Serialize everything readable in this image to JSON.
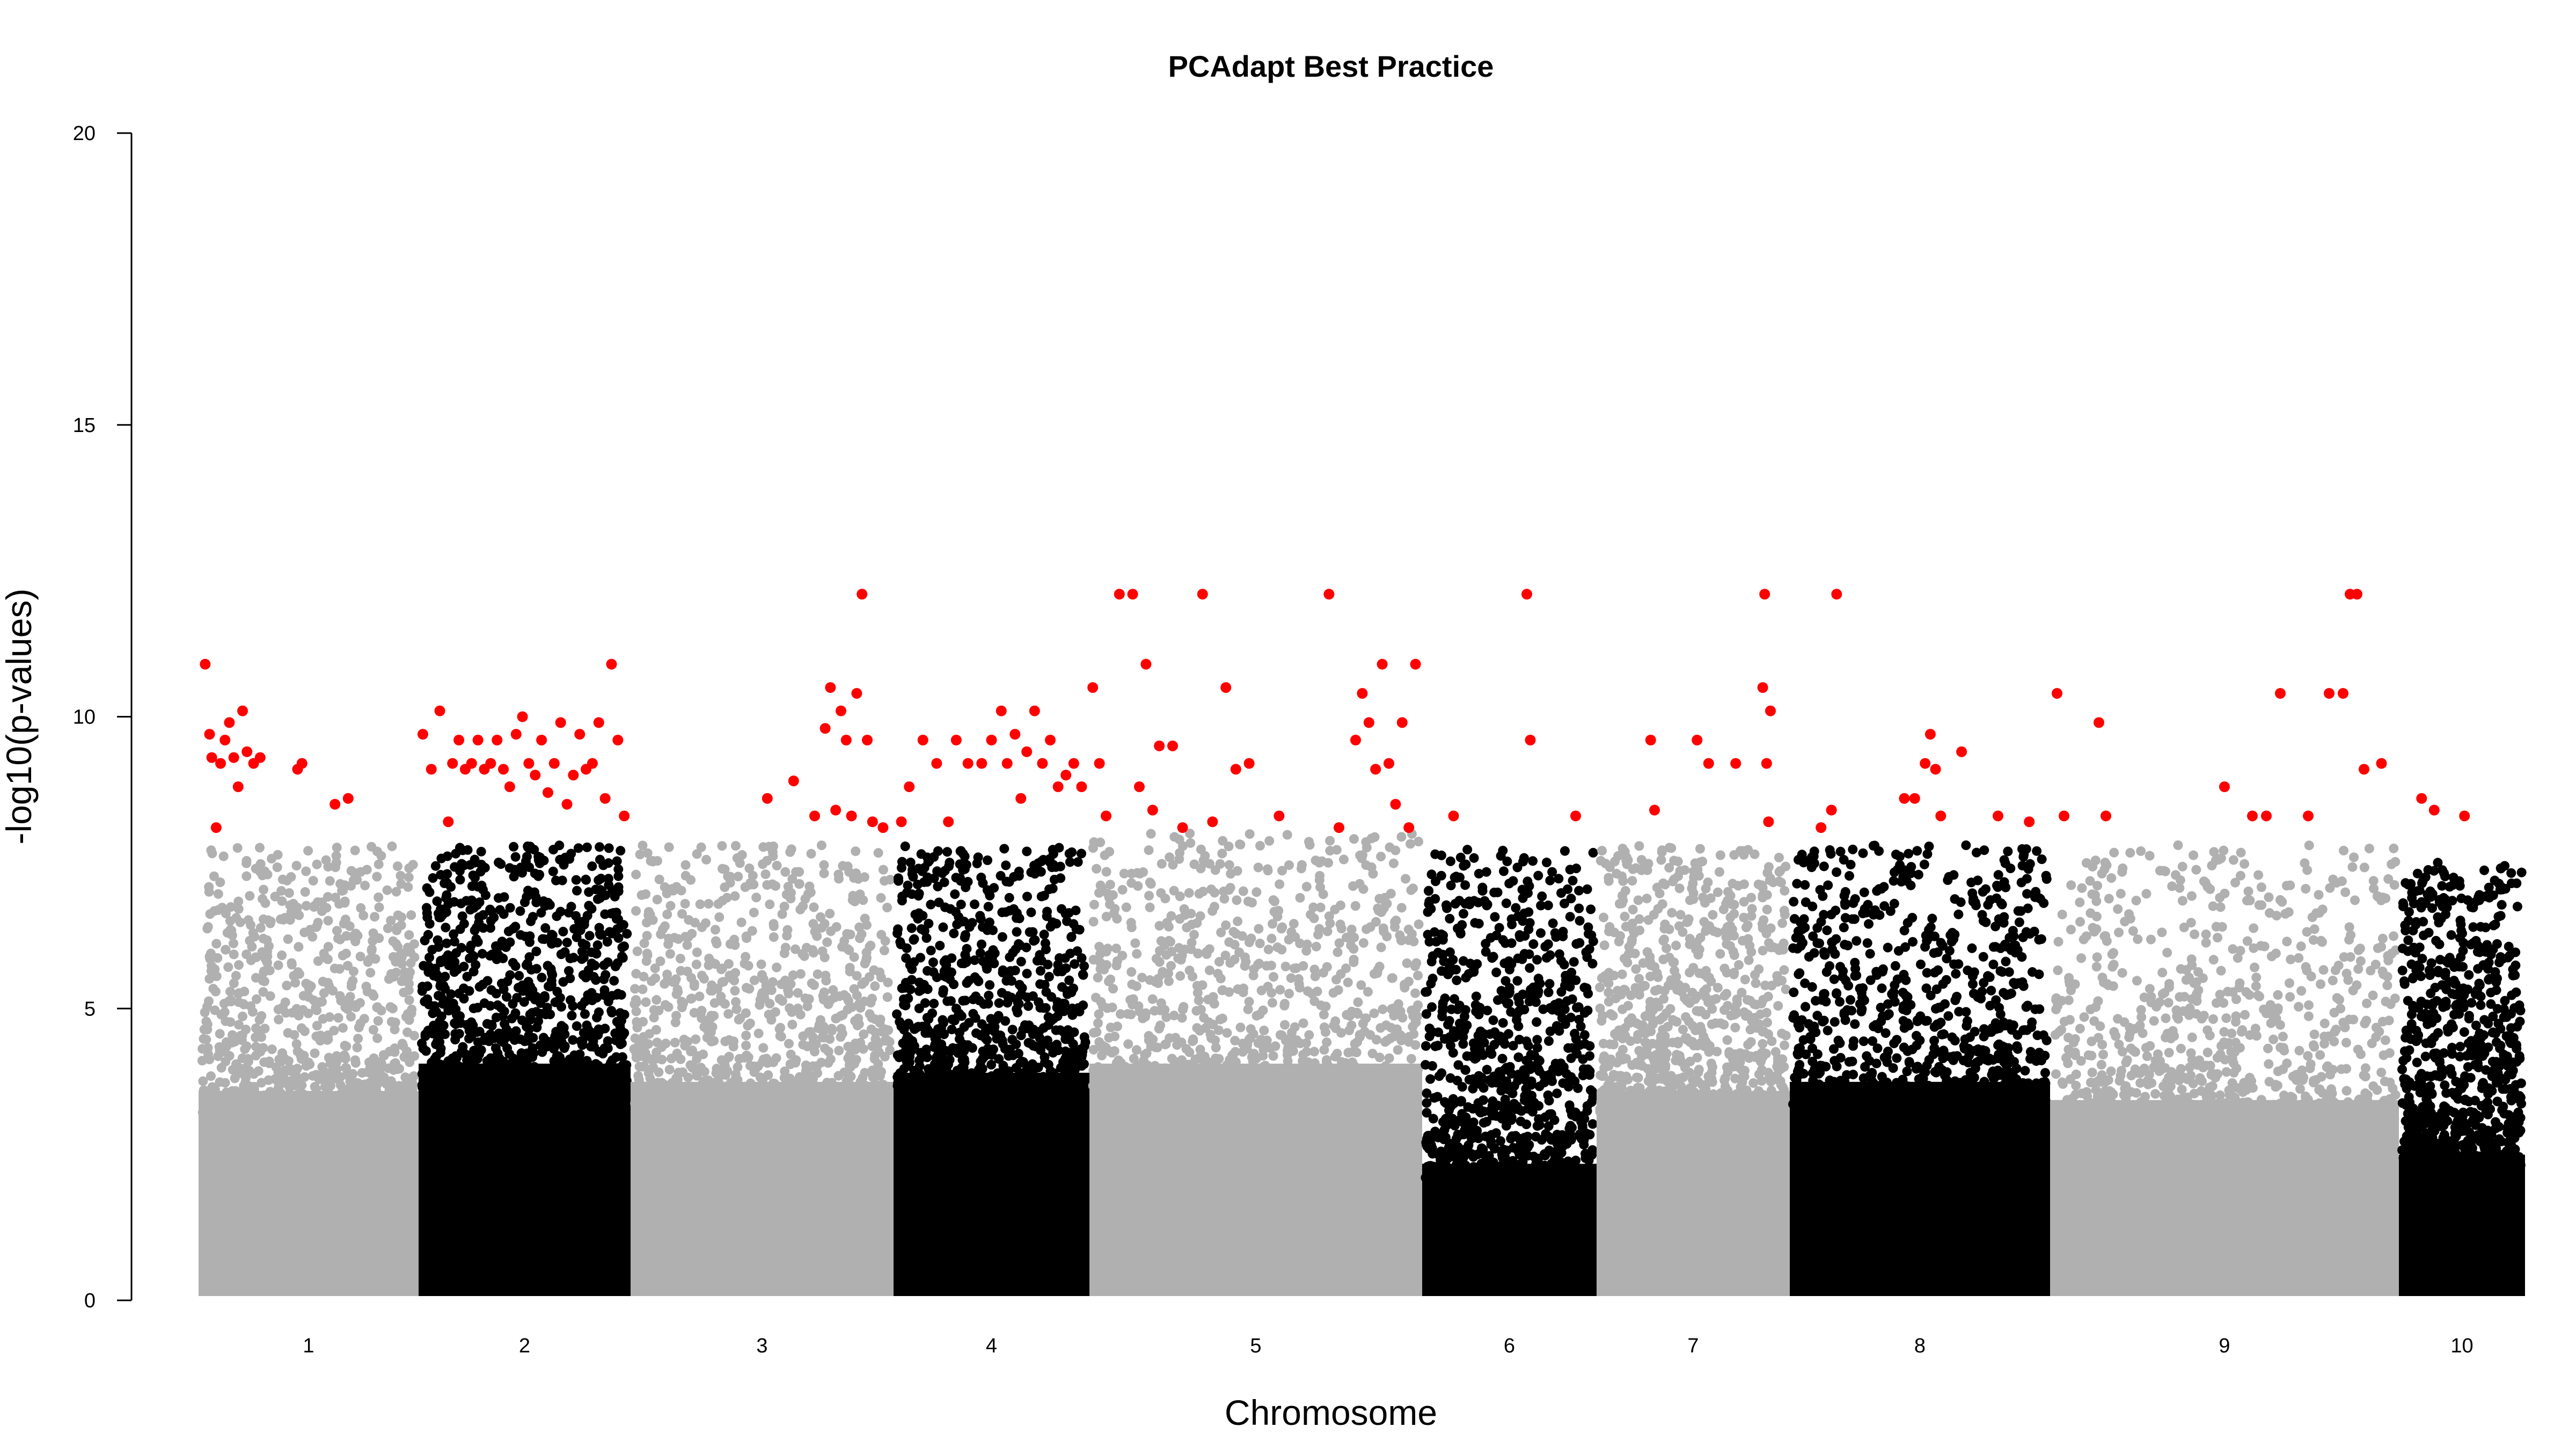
{
  "chart_data": {
    "type": "scatter",
    "title": "PCAdapt Best Practice",
    "xlabel": "Chromosome",
    "ylabel": "-log10(p-values)",
    "ylim": [
      0,
      20
    ],
    "yticks": [
      0,
      5,
      10,
      15,
      20
    ],
    "grid": false,
    "legend": "none",
    "colors": {
      "odd": "#b0b0b0",
      "even": "#000000",
      "outlier": "#ff0000"
    },
    "chromosomes": [
      {
        "label": "1",
        "color": "#b0b0b0",
        "max_y": 7.8,
        "dense_top": 4.6,
        "outliers": [
          [
            0.03,
            10.9
          ],
          [
            0.05,
            9.7
          ],
          [
            0.06,
            9.3
          ],
          [
            0.08,
            8.1
          ],
          [
            0.1,
            9.2
          ],
          [
            0.12,
            9.6
          ],
          [
            0.14,
            9.9
          ],
          [
            0.16,
            9.3
          ],
          [
            0.18,
            8.8
          ],
          [
            0.2,
            10.1
          ],
          [
            0.22,
            9.4
          ],
          [
            0.25,
            9.2
          ],
          [
            0.28,
            9.3
          ],
          [
            0.45,
            9.1
          ],
          [
            0.47,
            9.2
          ],
          [
            0.62,
            8.5
          ],
          [
            0.68,
            8.6
          ]
        ]
      },
      {
        "label": "2",
        "color": "#000000",
        "max_y": 7.8,
        "dense_top": 5.2,
        "outliers": [
          [
            0.02,
            9.7
          ],
          [
            0.06,
            9.1
          ],
          [
            0.1,
            10.1
          ],
          [
            0.14,
            8.2
          ],
          [
            0.16,
            9.2
          ],
          [
            0.19,
            9.6
          ],
          [
            0.22,
            9.1
          ],
          [
            0.25,
            9.2
          ],
          [
            0.28,
            9.6
          ],
          [
            0.31,
            9.1
          ],
          [
            0.34,
            9.2
          ],
          [
            0.37,
            9.6
          ],
          [
            0.4,
            9.1
          ],
          [
            0.43,
            8.8
          ],
          [
            0.46,
            9.7
          ],
          [
            0.49,
            10.0
          ],
          [
            0.52,
            9.2
          ],
          [
            0.55,
            9.0
          ],
          [
            0.58,
            9.6
          ],
          [
            0.61,
            8.7
          ],
          [
            0.64,
            9.2
          ],
          [
            0.67,
            9.9
          ],
          [
            0.7,
            8.5
          ],
          [
            0.73,
            9.0
          ],
          [
            0.76,
            9.7
          ],
          [
            0.79,
            9.1
          ],
          [
            0.82,
            9.2
          ],
          [
            0.85,
            9.9
          ],
          [
            0.88,
            8.6
          ],
          [
            0.91,
            10.9
          ],
          [
            0.94,
            9.6
          ],
          [
            0.97,
            8.3
          ]
        ]
      },
      {
        "label": "3",
        "color": "#b0b0b0",
        "max_y": 7.8,
        "dense_top": 4.8,
        "outliers": [
          [
            0.52,
            8.6
          ],
          [
            0.62,
            8.9
          ],
          [
            0.7,
            8.3
          ],
          [
            0.74,
            9.8
          ],
          [
            0.76,
            10.5
          ],
          [
            0.78,
            8.4
          ],
          [
            0.8,
            10.1
          ],
          [
            0.82,
            9.6
          ],
          [
            0.84,
            8.3
          ],
          [
            0.86,
            10.4
          ],
          [
            0.88,
            12.1
          ],
          [
            0.9,
            9.6
          ],
          [
            0.92,
            8.2
          ],
          [
            0.96,
            8.1
          ]
        ]
      },
      {
        "label": "4",
        "color": "#000000",
        "max_y": 7.8,
        "dense_top": 5.0,
        "outliers": [
          [
            0.04,
            8.2
          ],
          [
            0.08,
            8.8
          ],
          [
            0.15,
            9.6
          ],
          [
            0.22,
            9.2
          ],
          [
            0.28,
            8.2
          ],
          [
            0.32,
            9.6
          ],
          [
            0.38,
            9.2
          ],
          [
            0.45,
            9.2
          ],
          [
            0.5,
            9.6
          ],
          [
            0.55,
            10.1
          ],
          [
            0.58,
            9.2
          ],
          [
            0.62,
            9.7
          ],
          [
            0.65,
            8.6
          ],
          [
            0.68,
            9.4
          ],
          [
            0.72,
            10.1
          ],
          [
            0.76,
            9.2
          ],
          [
            0.8,
            9.6
          ],
          [
            0.84,
            8.8
          ],
          [
            0.88,
            9.0
          ],
          [
            0.92,
            9.2
          ],
          [
            0.96,
            8.8
          ]
        ]
      },
      {
        "label": "5",
        "color": "#b0b0b0",
        "max_y": 8.0,
        "dense_top": 5.2,
        "outliers": [
          [
            0.01,
            10.5
          ],
          [
            0.03,
            9.2
          ],
          [
            0.05,
            8.3
          ],
          [
            0.09,
            12.1
          ],
          [
            0.13,
            12.1
          ],
          [
            0.15,
            8.8
          ],
          [
            0.17,
            10.9
          ],
          [
            0.19,
            8.4
          ],
          [
            0.21,
            9.5
          ],
          [
            0.25,
            9.5
          ],
          [
            0.28,
            8.1
          ],
          [
            0.34,
            12.1
          ],
          [
            0.37,
            8.2
          ],
          [
            0.41,
            10.5
          ],
          [
            0.44,
            9.1
          ],
          [
            0.48,
            9.2
          ],
          [
            0.57,
            8.3
          ],
          [
            0.72,
            12.1
          ],
          [
            0.75,
            8.1
          ],
          [
            0.8,
            9.6
          ],
          [
            0.82,
            10.4
          ],
          [
            0.84,
            9.9
          ],
          [
            0.86,
            9.1
          ],
          [
            0.88,
            10.9
          ],
          [
            0.9,
            9.2
          ],
          [
            0.92,
            8.5
          ],
          [
            0.94,
            9.9
          ],
          [
            0.96,
            8.1
          ],
          [
            0.98,
            10.9
          ]
        ]
      },
      {
        "label": "6",
        "color": "#000000",
        "max_y": 7.8,
        "dense_top": 3.0,
        "outliers": [
          [
            0.18,
            8.3
          ],
          [
            0.6,
            12.1
          ],
          [
            0.62,
            9.6
          ],
          [
            0.88,
            8.3
          ]
        ]
      },
      {
        "label": "7",
        "color": "#b0b0b0",
        "max_y": 7.8,
        "dense_top": 4.6,
        "outliers": [
          [
            0.28,
            9.6
          ],
          [
            0.3,
            8.4
          ],
          [
            0.52,
            9.6
          ],
          [
            0.58,
            9.2
          ],
          [
            0.72,
            9.2
          ],
          [
            0.86,
            10.5
          ],
          [
            0.87,
            12.1
          ],
          [
            0.88,
            9.2
          ],
          [
            0.89,
            8.2
          ],
          [
            0.9,
            10.1
          ]
        ]
      },
      {
        "label": "8",
        "color": "#000000",
        "max_y": 7.8,
        "dense_top": 4.8,
        "outliers": [
          [
            0.12,
            8.1
          ],
          [
            0.18,
            12.1
          ],
          [
            0.16,
            8.4
          ],
          [
            0.44,
            8.6
          ],
          [
            0.48,
            8.6
          ],
          [
            0.52,
            9.2
          ],
          [
            0.54,
            9.7
          ],
          [
            0.56,
            9.1
          ],
          [
            0.58,
            8.3
          ],
          [
            0.66,
            9.4
          ],
          [
            0.8,
            8.3
          ],
          [
            0.92,
            8.2
          ]
        ]
      },
      {
        "label": "9",
        "color": "#b0b0b0",
        "max_y": 7.8,
        "dense_top": 4.4,
        "outliers": [
          [
            0.02,
            10.4
          ],
          [
            0.04,
            8.3
          ],
          [
            0.14,
            9.9
          ],
          [
            0.16,
            8.3
          ],
          [
            0.5,
            8.8
          ],
          [
            0.58,
            8.3
          ],
          [
            0.62,
            8.3
          ],
          [
            0.66,
            10.4
          ],
          [
            0.74,
            8.3
          ],
          [
            0.8,
            10.4
          ],
          [
            0.84,
            10.4
          ],
          [
            0.86,
            12.1
          ],
          [
            0.88,
            12.1
          ],
          [
            0.9,
            9.1
          ],
          [
            0.95,
            9.2
          ]
        ]
      },
      {
        "label": "10",
        "color": "#000000",
        "max_y": 7.5,
        "dense_top": 3.2,
        "outliers": [
          [
            0.18,
            8.6
          ],
          [
            0.28,
            8.4
          ],
          [
            0.52,
            8.3
          ]
        ]
      }
    ]
  }
}
